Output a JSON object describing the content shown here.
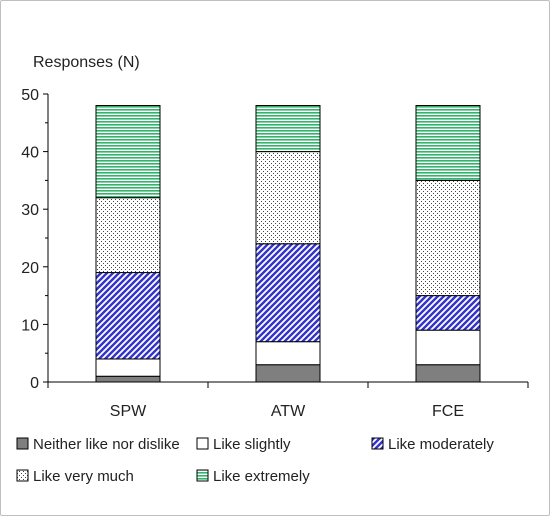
{
  "chart_data": {
    "type": "bar",
    "stacked": true,
    "ylabel": "Responses (N)",
    "ylim": [
      0,
      50
    ],
    "yticks": [
      0,
      10,
      20,
      30,
      40,
      50
    ],
    "grid": false,
    "legend_position": "bottom",
    "categories": [
      "SPW",
      "ATW",
      "FCE"
    ],
    "series": [
      {
        "name": "Neither like nor dislike",
        "values": [
          1,
          3,
          3
        ],
        "pattern": "solid",
        "color": "#7f7f7f"
      },
      {
        "name": "Like slightly",
        "values": [
          3,
          4,
          6
        ],
        "pattern": "none",
        "color": "#ffffff"
      },
      {
        "name": "Like moderately",
        "values": [
          15,
          17,
          6
        ],
        "pattern": "diagonal",
        "color": "#3333cc"
      },
      {
        "name": "Like very much",
        "values": [
          13,
          16,
          20
        ],
        "pattern": "dots",
        "color": "#333333"
      },
      {
        "name": "Like extremely",
        "values": [
          16,
          8,
          13
        ],
        "pattern": "horizontal",
        "color": "#33b36b"
      }
    ]
  }
}
